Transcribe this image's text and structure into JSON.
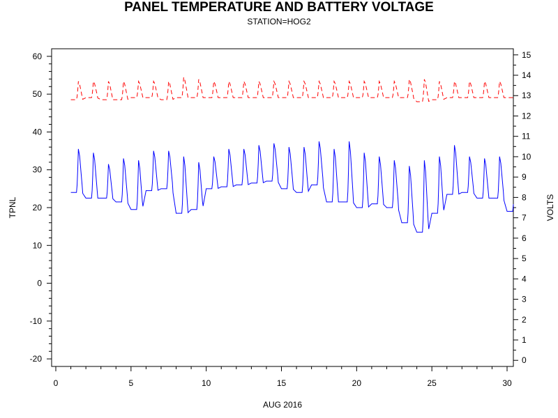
{
  "chart_data": {
    "type": "line",
    "title": "PANEL TEMPERATURE AND BATTERY VOLTAGE",
    "subtitle": "STATION=HOG2",
    "xlabel": "AUG 2016",
    "ylabel_left": "TPNL",
    "ylabel_right": "VOLTS",
    "xlim": [
      0,
      30
    ],
    "ylim_left": [
      -22,
      62
    ],
    "ylim_right": [
      -0.3,
      15.3
    ],
    "x_ticks": [
      0,
      5,
      10,
      15,
      20,
      25,
      30
    ],
    "y_ticks_left": [
      -20,
      -10,
      0,
      10,
      20,
      30,
      40,
      50,
      60
    ],
    "y_ticks_right": [
      0,
      1,
      2,
      3,
      4,
      5,
      6,
      7,
      8,
      9,
      10,
      11,
      12,
      13,
      14,
      15
    ],
    "grid": false,
    "series": [
      {
        "axis": "left",
        "color": "#0000ff",
        "style": "solid",
        "daily": [
          {
            "day": 1,
            "low": 24,
            "high": 35.5
          },
          {
            "day": 2,
            "low": 22.5,
            "high": 34.5
          },
          {
            "day": 3,
            "low": 22.5,
            "high": 31.5
          },
          {
            "day": 4,
            "low": 21.5,
            "high": 33
          },
          {
            "day": 5,
            "low": 19.5,
            "high": 32.5
          },
          {
            "day": 6,
            "low": 24.5,
            "high": 35
          },
          {
            "day": 7,
            "low": 25,
            "high": 35
          },
          {
            "day": 8,
            "low": 18.5,
            "high": 33.5
          },
          {
            "day": 9,
            "low": 19.5,
            "high": 32
          },
          {
            "day": 10,
            "low": 25,
            "high": 33.5
          },
          {
            "day": 11,
            "low": 25.5,
            "high": 35.5
          },
          {
            "day": 12,
            "low": 26,
            "high": 35.5
          },
          {
            "day": 13,
            "low": 26.5,
            "high": 36.5
          },
          {
            "day": 14,
            "low": 27,
            "high": 37
          },
          {
            "day": 15,
            "low": 25,
            "high": 36
          },
          {
            "day": 16,
            "low": 24,
            "high": 36
          },
          {
            "day": 17,
            "low": 26,
            "high": 37.5
          },
          {
            "day": 18,
            "low": 21.5,
            "high": 35.5
          },
          {
            "day": 19,
            "low": 21.5,
            "high": 37.5
          },
          {
            "day": 20,
            "low": 20,
            "high": 34.5
          },
          {
            "day": 21,
            "low": 21,
            "high": 33.5
          },
          {
            "day": 22,
            "low": 20,
            "high": 32.5
          },
          {
            "day": 23,
            "low": 16,
            "high": 31
          },
          {
            "day": 24,
            "low": 13.5,
            "high": 32.5
          },
          {
            "day": 25,
            "low": 18.5,
            "high": 33.5
          },
          {
            "day": 26,
            "low": 23.5,
            "high": 36.5
          },
          {
            "day": 27,
            "low": 24,
            "high": 33.5
          },
          {
            "day": 28,
            "low": 22.5,
            "high": 33
          },
          {
            "day": 29,
            "low": 22.5,
            "high": 33.5
          },
          {
            "day": 30,
            "low": 19,
            "high": 30
          }
        ]
      },
      {
        "axis": "right",
        "color": "#ff0000",
        "style": "dashed",
        "daily": [
          {
            "day": 1,
            "low": 12.8,
            "high": 13.7
          },
          {
            "day": 2,
            "low": 12.9,
            "high": 13.7
          },
          {
            "day": 3,
            "low": 12.8,
            "high": 13.7
          },
          {
            "day": 4,
            "low": 12.8,
            "high": 13.7
          },
          {
            "day": 5,
            "low": 12.9,
            "high": 13.7
          },
          {
            "day": 6,
            "low": 12.9,
            "high": 13.7
          },
          {
            "day": 7,
            "low": 12.8,
            "high": 13.7
          },
          {
            "day": 8,
            "low": 12.9,
            "high": 13.9
          },
          {
            "day": 9,
            "low": 12.9,
            "high": 13.8
          },
          {
            "day": 10,
            "low": 12.9,
            "high": 13.7
          },
          {
            "day": 11,
            "low": 12.9,
            "high": 13.7
          },
          {
            "day": 12,
            "low": 12.9,
            "high": 13.7
          },
          {
            "day": 13,
            "low": 12.9,
            "high": 13.7
          },
          {
            "day": 14,
            "low": 12.9,
            "high": 13.7
          },
          {
            "day": 15,
            "low": 12.9,
            "high": 13.7
          },
          {
            "day": 16,
            "low": 12.9,
            "high": 13.7
          },
          {
            "day": 17,
            "low": 12.9,
            "high": 13.7
          },
          {
            "day": 18,
            "low": 12.9,
            "high": 13.7
          },
          {
            "day": 19,
            "low": 12.9,
            "high": 13.7
          },
          {
            "day": 20,
            "low": 12.9,
            "high": 13.7
          },
          {
            "day": 21,
            "low": 12.9,
            "high": 13.7
          },
          {
            "day": 22,
            "low": 12.9,
            "high": 13.7
          },
          {
            "day": 23,
            "low": 12.9,
            "high": 13.8
          },
          {
            "day": 24,
            "low": 12.7,
            "high": 13.8
          },
          {
            "day": 25,
            "low": 12.8,
            "high": 13.7
          },
          {
            "day": 26,
            "low": 12.9,
            "high": 13.7
          },
          {
            "day": 27,
            "low": 12.9,
            "high": 13.7
          },
          {
            "day": 28,
            "low": 12.9,
            "high": 13.7
          },
          {
            "day": 29,
            "low": 12.9,
            "high": 13.7
          },
          {
            "day": 30,
            "low": 12.9,
            "high": 13.7
          }
        ]
      }
    ]
  }
}
